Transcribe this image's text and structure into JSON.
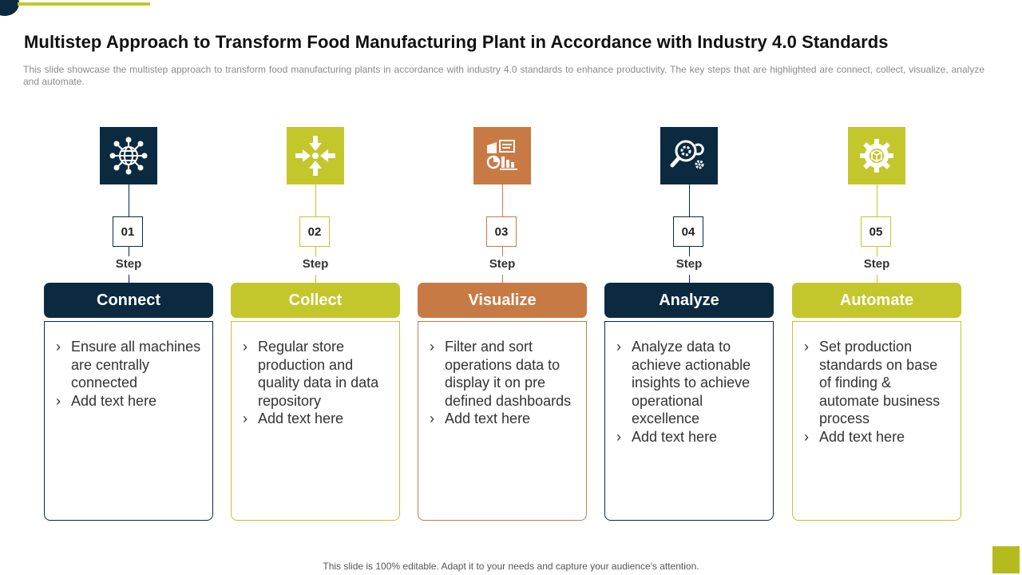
{
  "title": "Multistep Approach to Transform Food Manufacturing Plant in Accordance with Industry 4.0 Standards",
  "subtitle": "This slide showcase the multistep approach to transform food manufacturing  plants in accordance with industry 4.0 standards to enhance productivity. The key steps that are highlighted are connect, collect, visualize, analyze and automate.",
  "footer": "This slide is 100% editable. Adapt it to your needs and capture your audience's attention.",
  "colors": {
    "navy": "#0b2a40",
    "olive": "#c3c72b",
    "orange": "#c87a45"
  },
  "steps": [
    {
      "number": "01",
      "step_label": "Step",
      "title": "Connect",
      "icon": "globe-network-icon",
      "color": "navy",
      "bullets": [
        "Ensure all machines are centrally connected",
        "Add text here"
      ]
    },
    {
      "number": "02",
      "step_label": "Step",
      "title": "Collect",
      "icon": "arrows-converge-icon",
      "color": "olive",
      "bullets": [
        "Regular store production and quality data in data repository",
        "Add text here"
      ]
    },
    {
      "number": "03",
      "step_label": "Step",
      "title": "Visualize",
      "icon": "dashboard-charts-icon",
      "color": "orange",
      "bullets": [
        "Filter and sort operations data to display it on pre defined dashboards",
        "Add text here"
      ]
    },
    {
      "number": "04",
      "step_label": "Step",
      "title": "Analyze",
      "icon": "magnifier-gears-icon",
      "color": "navy",
      "bullets": [
        "Analyze data to achieve actionable insights to achieve operational excellence",
        "Add text here"
      ]
    },
    {
      "number": "05",
      "step_label": "Step",
      "title": "Automate",
      "icon": "gear-box-icon",
      "color": "olive",
      "bullets": [
        "Set production standards on base of finding & automate business process",
        "Add text here"
      ]
    }
  ]
}
